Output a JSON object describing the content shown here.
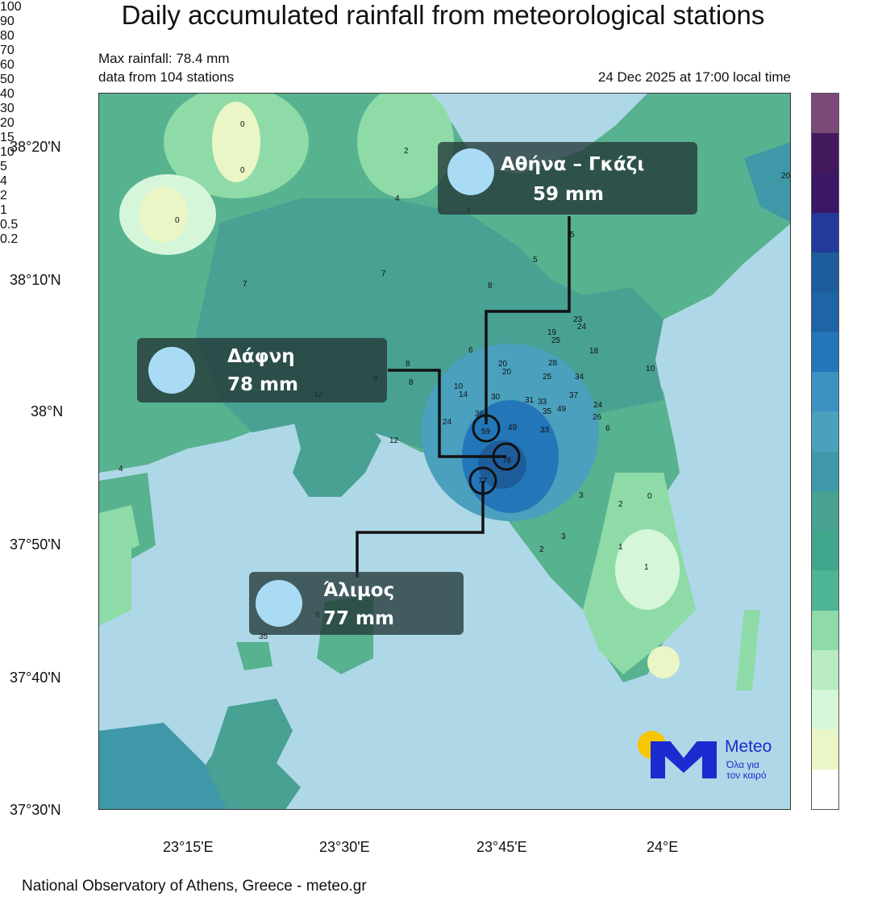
{
  "title": "Daily accumulated rainfall from meteorological stations",
  "max_rainfall": "Max rainfall: 78.4 mm",
  "stations_note": "data from 104 stations",
  "datetime": "24 Dec 2025 at 17:00 local time",
  "footer": "National Observatory of Athens, Greece - meteo.gr",
  "lat_labels": [
    "38°20'N",
    "38°10'N",
    "38°N",
    "37°50'N",
    "37°40'N",
    "37°30'N"
  ],
  "lon_labels": [
    "23°15'E",
    "23°30'E",
    "23°45'E",
    "24°E"
  ],
  "legend": {
    "labels": [
      "100",
      "90",
      "80",
      "70",
      "60",
      "50",
      "40",
      "30",
      "20",
      "15",
      "10",
      "5",
      "4",
      "2",
      "1",
      "0.5",
      "0.2"
    ],
    "colors": [
      "#7b4a78",
      "#43195e",
      "#3a1767",
      "#233a9c",
      "#1e5d9c",
      "#1f64a4",
      "#2377b8",
      "#3b92c0",
      "#4aa0bd",
      "#3f98a7",
      "#48a192",
      "#3fa68c",
      "#4db595",
      "#8edba8",
      "#b8ecc0",
      "#d6f6d9",
      "#eaf6c5",
      "#ffffff"
    ]
  },
  "callouts": [
    {
      "name": "Αθήνα – Γκάζι",
      "value": "59 mm"
    },
    {
      "name": "Δάφνη",
      "value": "78 mm"
    },
    {
      "name": "Άλιμος",
      "value": "77 mm"
    }
  ],
  "station_values": [
    {
      "v": "0"
    },
    {
      "v": "0"
    },
    {
      "v": "0"
    },
    {
      "v": "2"
    },
    {
      "v": "4"
    },
    {
      "v": "4"
    },
    {
      "v": "20"
    },
    {
      "v": "5"
    },
    {
      "v": "7"
    },
    {
      "v": "7"
    },
    {
      "v": "5"
    },
    {
      "v": "8"
    },
    {
      "v": "23"
    },
    {
      "v": "24"
    },
    {
      "v": "19"
    },
    {
      "v": "25"
    },
    {
      "v": "18"
    },
    {
      "v": "6"
    },
    {
      "v": "20"
    },
    {
      "v": "20"
    },
    {
      "v": "28"
    },
    {
      "v": "25"
    },
    {
      "v": "34"
    },
    {
      "v": "10"
    },
    {
      "v": "8"
    },
    {
      "v": "8"
    },
    {
      "v": "9"
    },
    {
      "v": "12"
    },
    {
      "v": "10"
    },
    {
      "v": "14"
    },
    {
      "v": "30"
    },
    {
      "v": "31"
    },
    {
      "v": "33"
    },
    {
      "v": "35"
    },
    {
      "v": "49"
    },
    {
      "v": "37"
    },
    {
      "v": "24"
    },
    {
      "v": "26"
    },
    {
      "v": "49"
    },
    {
      "v": "33"
    },
    {
      "v": "6"
    },
    {
      "v": "36"
    },
    {
      "v": "59"
    },
    {
      "v": "24"
    },
    {
      "v": "12"
    },
    {
      "v": "4"
    },
    {
      "v": "78"
    },
    {
      "v": "77"
    },
    {
      "v": "3"
    },
    {
      "v": "2"
    },
    {
      "v": "0"
    },
    {
      "v": "3"
    },
    {
      "v": "2"
    },
    {
      "v": "1"
    },
    {
      "v": "1"
    },
    {
      "v": "35"
    },
    {
      "v": "8"
    }
  ],
  "logo": {
    "text": "Meteo",
    "tagline": "Όλα για τον καιρό"
  }
}
